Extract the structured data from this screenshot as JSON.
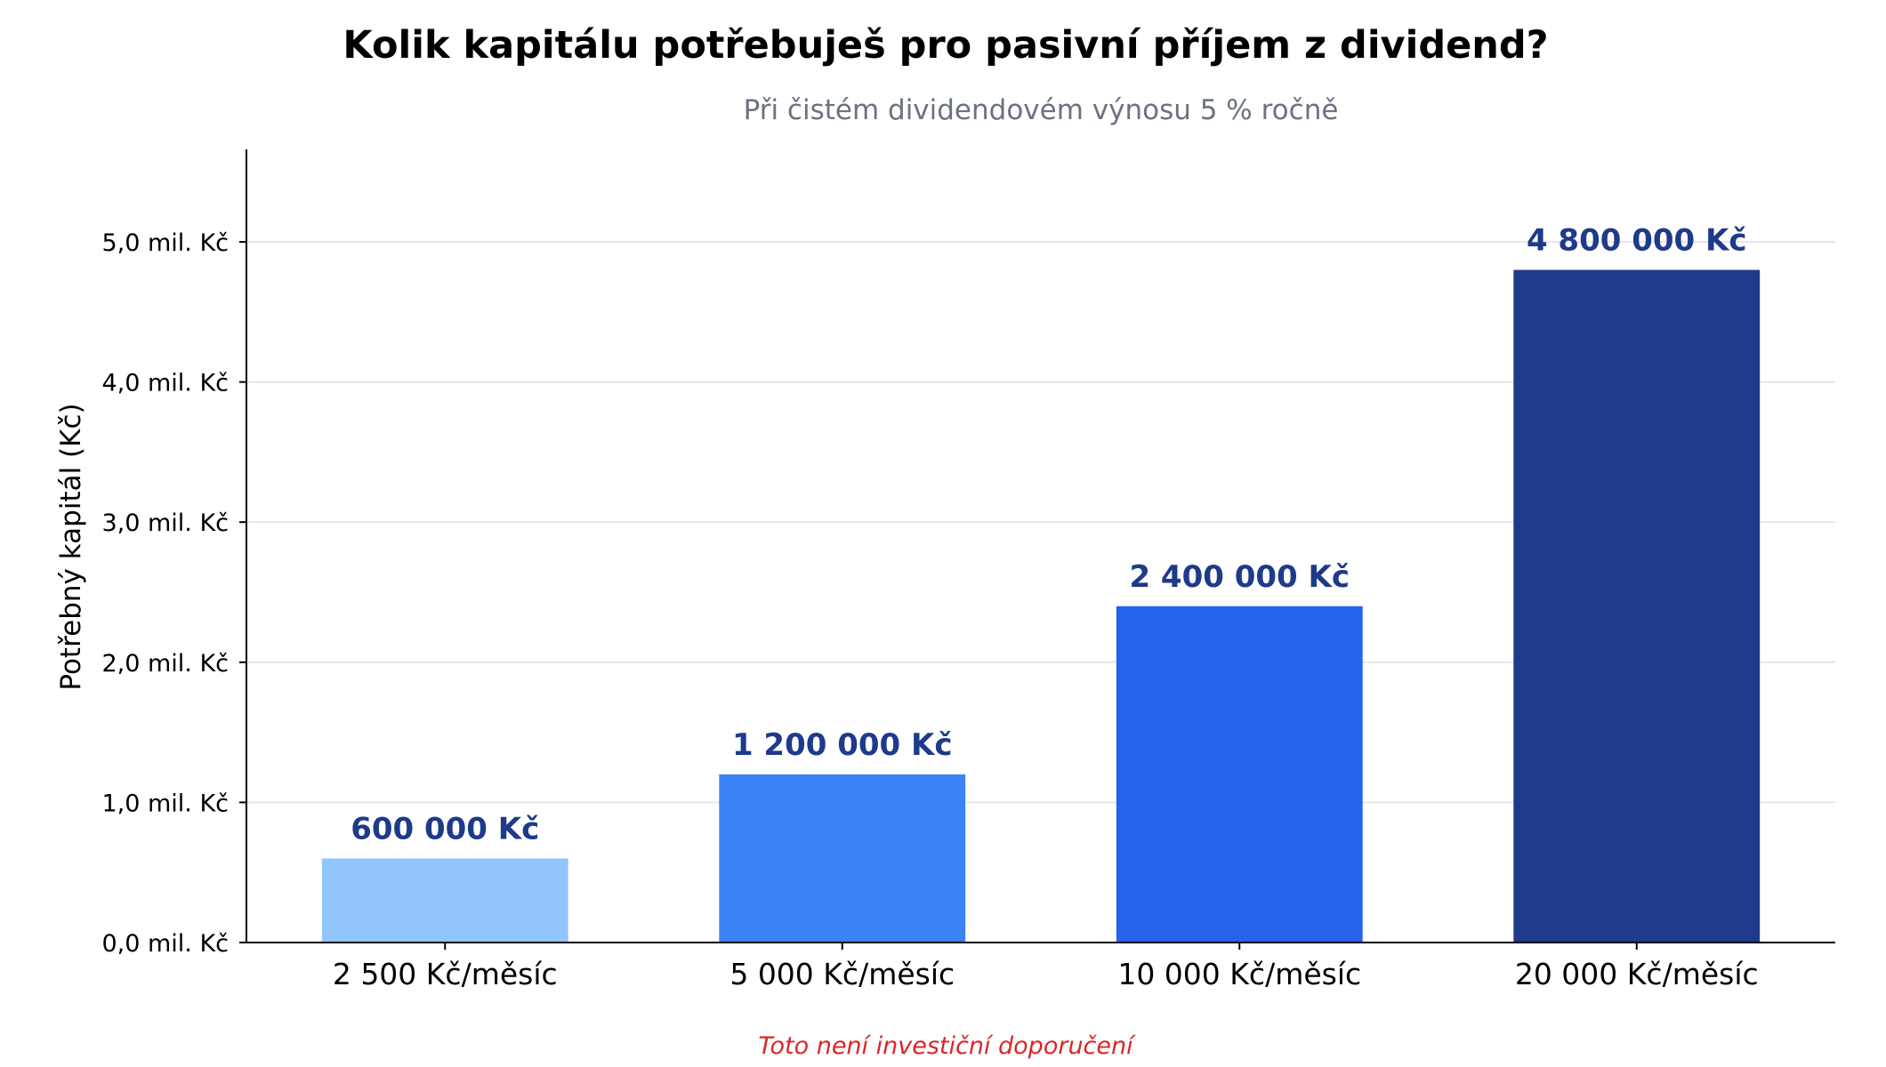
{
  "chart_data": {
    "type": "bar",
    "title": "Kolik kapitálu potřebuješ pro pasivní příjem z dividend?",
    "subtitle": "Při čistém dividendovém výnosu 5 % ročně",
    "xlabel": "",
    "ylabel": "Potřebný kapitál (Kč)",
    "categories": [
      "2 500 Kč/měsíc",
      "5 000 Kč/měsíc",
      "10 000 Kč/měsíc",
      "20 000 Kč/měsíc"
    ],
    "values": [
      600000,
      1200000,
      2400000,
      4800000
    ],
    "value_labels": [
      "600 000 Kč",
      "1 200 000 Kč",
      "2 400 000 Kč",
      "4 800 000 Kč"
    ],
    "bar_colors": [
      "#93c5fd",
      "#3b82f6",
      "#2563eb",
      "#1e3a8a"
    ],
    "label_color": "#1e3a8a",
    "ylim": [
      0,
      5660000
    ],
    "yticks": [
      0,
      1000000,
      2000000,
      3000000,
      4000000,
      5000000
    ],
    "ytick_labels": [
      "0,0 mil. Kč",
      "1,0 mil. Kč",
      "2,0 mil. Kč",
      "3,0 mil. Kč",
      "4,0 mil. Kč",
      "5,0 mil. Kč"
    ],
    "grid": "horizontal",
    "footnote": "Toto není investiční doporučení"
  }
}
